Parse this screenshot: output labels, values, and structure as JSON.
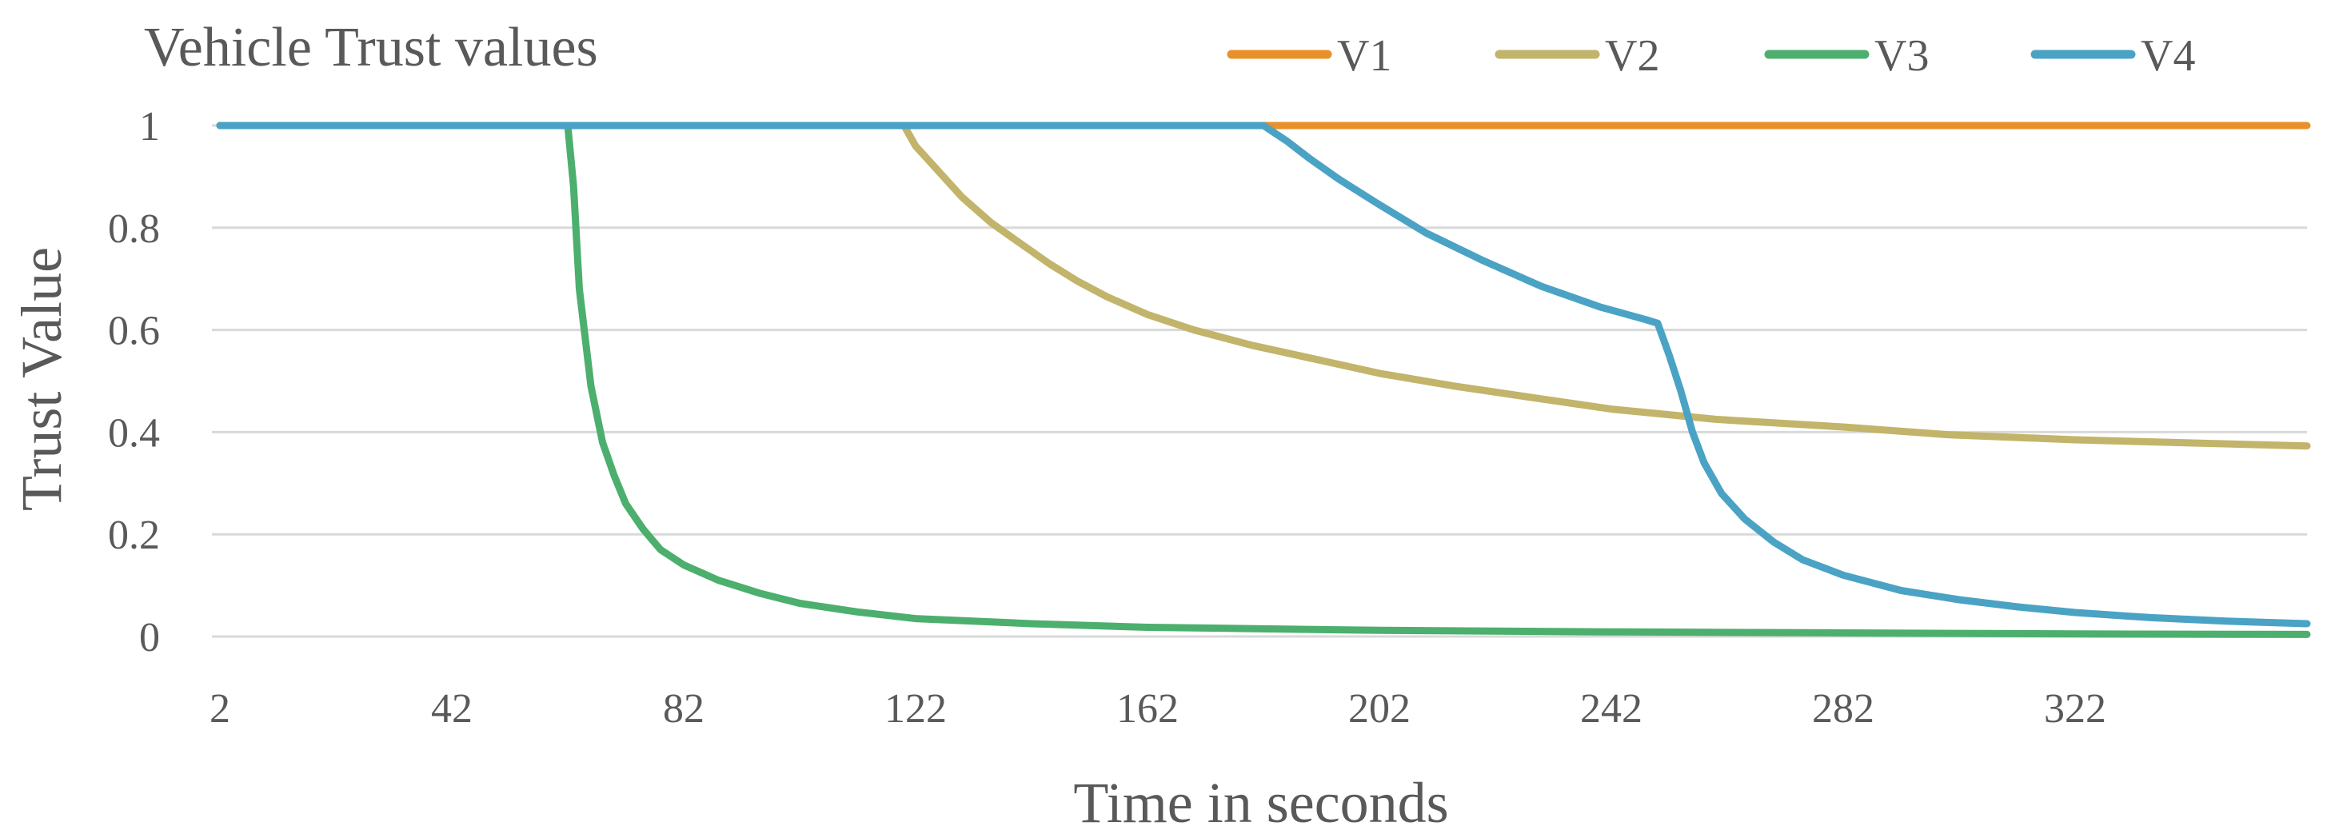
{
  "chart_data": {
    "type": "line",
    "title": "Vehicle Trust values",
    "xlabel": "Time in seconds",
    "ylabel": "Trust Value",
    "xlim": [
      2,
      362
    ],
    "ylim": [
      0,
      1
    ],
    "x_ticks": [
      2,
      42,
      82,
      122,
      162,
      202,
      242,
      282,
      322
    ],
    "y_ticks": [
      0,
      0.2,
      0.4,
      0.6,
      0.8,
      1
    ],
    "y_tick_labels": [
      "0",
      "0.2",
      "0.4",
      "0.6",
      "0.8",
      "1"
    ],
    "grid": true,
    "legend_position": "top",
    "series": [
      {
        "name": "V1",
        "color": "#e8902a",
        "points": [
          [
            2,
            1
          ],
          [
            362,
            1
          ]
        ]
      },
      {
        "name": "V2",
        "color": "#c2b46a",
        "points": [
          [
            2,
            1
          ],
          [
            120,
            1
          ],
          [
            122,
            0.96
          ],
          [
            126,
            0.91
          ],
          [
            130,
            0.86
          ],
          [
            135,
            0.81
          ],
          [
            140,
            0.77
          ],
          [
            145,
            0.73
          ],
          [
            150,
            0.695
          ],
          [
            155,
            0.665
          ],
          [
            162,
            0.63
          ],
          [
            170,
            0.6
          ],
          [
            180,
            0.57
          ],
          [
            190,
            0.545
          ],
          [
            202,
            0.515
          ],
          [
            215,
            0.49
          ],
          [
            230,
            0.465
          ],
          [
            242,
            0.445
          ],
          [
            260,
            0.425
          ],
          [
            282,
            0.41
          ],
          [
            300,
            0.395
          ],
          [
            322,
            0.385
          ],
          [
            345,
            0.378
          ],
          [
            362,
            0.373
          ]
        ]
      },
      {
        "name": "V3",
        "color": "#4caf6e",
        "points": [
          [
            2,
            1
          ],
          [
            62,
            1
          ],
          [
            63,
            0.88
          ],
          [
            64,
            0.68
          ],
          [
            66,
            0.49
          ],
          [
            68,
            0.38
          ],
          [
            70,
            0.315
          ],
          [
            72,
            0.26
          ],
          [
            75,
            0.21
          ],
          [
            78,
            0.17
          ],
          [
            82,
            0.14
          ],
          [
            88,
            0.11
          ],
          [
            95,
            0.085
          ],
          [
            102,
            0.065
          ],
          [
            112,
            0.048
          ],
          [
            122,
            0.035
          ],
          [
            142,
            0.025
          ],
          [
            162,
            0.018
          ],
          [
            202,
            0.012
          ],
          [
            242,
            0.009
          ],
          [
            282,
            0.007
          ],
          [
            322,
            0.005
          ],
          [
            362,
            0.004
          ]
        ]
      },
      {
        "name": "V4",
        "color": "#4aa3c4",
        "points": [
          [
            2,
            1
          ],
          [
            182,
            1
          ],
          [
            186,
            0.97
          ],
          [
            190,
            0.935
          ],
          [
            195,
            0.895
          ],
          [
            202,
            0.845
          ],
          [
            210,
            0.79
          ],
          [
            220,
            0.735
          ],
          [
            230,
            0.685
          ],
          [
            240,
            0.645
          ],
          [
            248,
            0.62
          ],
          [
            250,
            0.613
          ],
          [
            252,
            0.55
          ],
          [
            254,
            0.48
          ],
          [
            256,
            0.4
          ],
          [
            258,
            0.34
          ],
          [
            261,
            0.28
          ],
          [
            265,
            0.23
          ],
          [
            270,
            0.185
          ],
          [
            275,
            0.15
          ],
          [
            282,
            0.12
          ],
          [
            292,
            0.09
          ],
          [
            302,
            0.072
          ],
          [
            312,
            0.058
          ],
          [
            322,
            0.047
          ],
          [
            335,
            0.037
          ],
          [
            348,
            0.03
          ],
          [
            362,
            0.025
          ]
        ]
      }
    ]
  }
}
